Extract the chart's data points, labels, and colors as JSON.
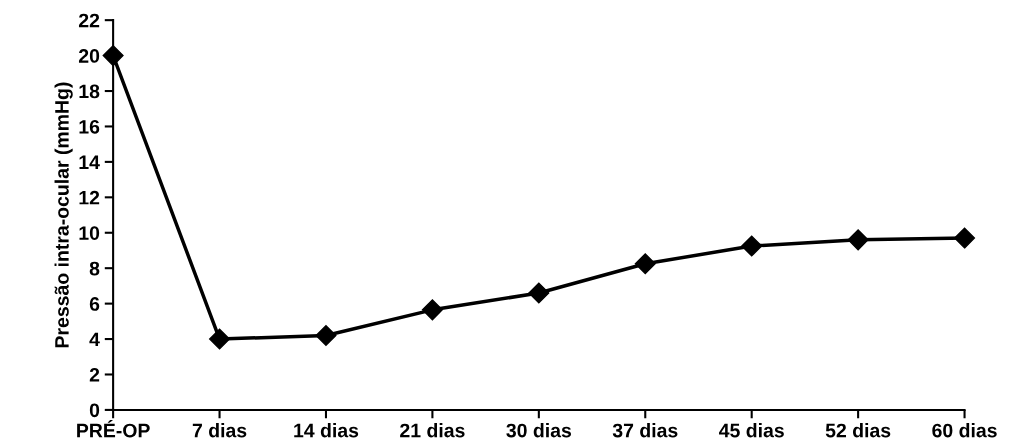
{
  "chart_data": {
    "type": "line",
    "ylabel": "Pressão intra-ocular (mmHg)",
    "categories": [
      "PRÉ-OP",
      "7 dias",
      "14 dias",
      "21 dias",
      "30 dias",
      "37 dias",
      "45 dias",
      "52 dias",
      "60 dias"
    ],
    "series": [
      {
        "color": "#000000",
        "values": [
          20.0,
          4.0,
          4.2,
          5.65,
          6.6,
          8.25,
          9.25,
          9.6,
          9.7
        ]
      }
    ],
    "ylim": [
      0,
      22
    ],
    "yticks": [
      0,
      2,
      4,
      6,
      8,
      10,
      12,
      14,
      16,
      18,
      20,
      22
    ],
    "grid": false,
    "marker": "diamond",
    "line_style": "solid"
  }
}
